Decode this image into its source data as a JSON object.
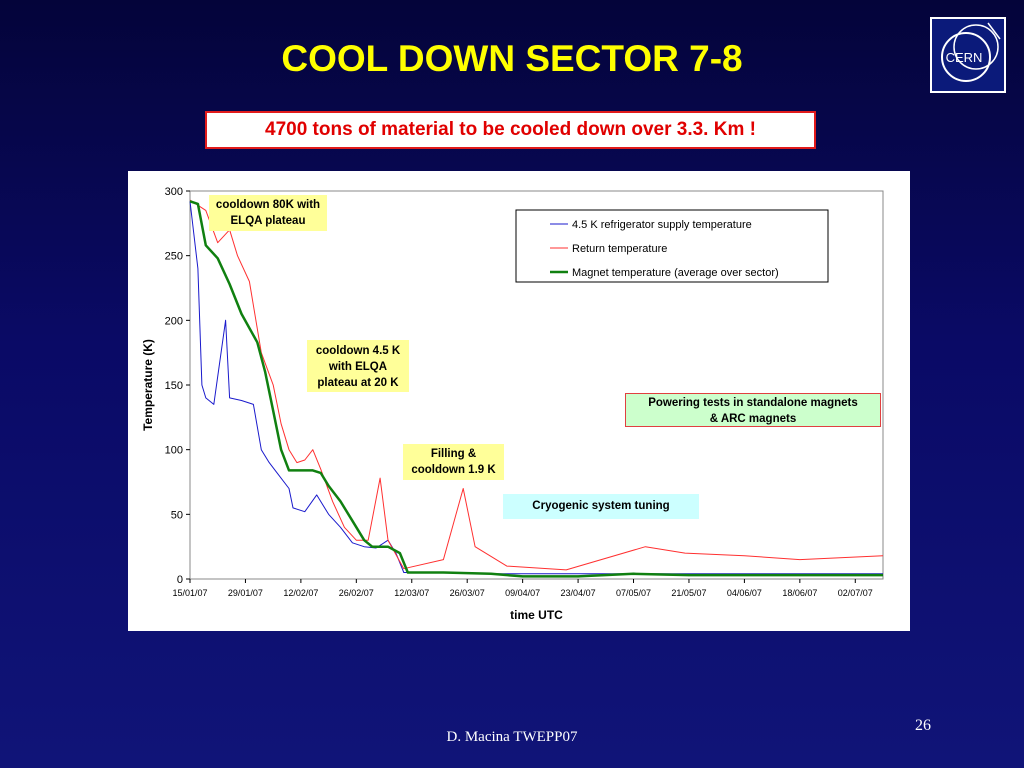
{
  "slide": {
    "title": "COOL DOWN SECTOR 7-8",
    "subtitle": "4700 tons of material to be cooled down over 3.3. Km !",
    "footer": "D. Macina TWEPP07",
    "page_number": "26",
    "logo_text": "CERN"
  },
  "annotations": {
    "cooldown_80k": [
      "cooldown 80K with",
      "ELQA plateau"
    ],
    "cooldown_45k": [
      "cooldown 4.5 K",
      "with ELQA",
      "plateau at 20 K"
    ],
    "filling": [
      "Filling &",
      "cooldown 1.9 K"
    ],
    "powering": [
      "Powering tests in standalone magnets",
      "& ARC magnets"
    ],
    "cryo_tuning": [
      "Cryogenic system tuning"
    ]
  },
  "colors": {
    "title": "#ffff00",
    "supply_series": "#1a1acc",
    "return_series": "#ff3030",
    "magnet_series": "#108010"
  },
  "chart_data": {
    "type": "line",
    "xlabel": "time UTC",
    "ylabel": "Temperature (K)",
    "ylim": [
      0,
      300
    ],
    "yticks": [
      0,
      50,
      100,
      150,
      200,
      250,
      300
    ],
    "xticks": [
      "15/01/07",
      "29/01/07",
      "12/02/07",
      "26/02/07",
      "12/03/07",
      "26/03/07",
      "09/04/07",
      "23/04/07",
      "07/05/07",
      "21/05/07",
      "04/06/07",
      "18/06/07",
      "02/07/07"
    ],
    "xlim": [
      "15/01/07",
      "09/07/07"
    ],
    "legend_position": "top-right",
    "series": [
      {
        "name": "4.5 K refrigerator supply temperature",
        "color": "#1a1acc",
        "points": [
          [
            "15/01/07",
            292
          ],
          [
            "17/01/07",
            240
          ],
          [
            "18/01/07",
            150
          ],
          [
            "19/01/07",
            140
          ],
          [
            "21/01/07",
            135
          ],
          [
            "24/01/07",
            200
          ],
          [
            "25/01/07",
            140
          ],
          [
            "28/01/07",
            138
          ],
          [
            "31/01/07",
            135
          ],
          [
            "02/02/07",
            100
          ],
          [
            "04/02/07",
            90
          ],
          [
            "06/02/07",
            82
          ],
          [
            "09/02/07",
            70
          ],
          [
            "10/02/07",
            55
          ],
          [
            "13/02/07",
            52
          ],
          [
            "16/02/07",
            65
          ],
          [
            "19/02/07",
            50
          ],
          [
            "22/02/07",
            40
          ],
          [
            "25/02/07",
            28
          ],
          [
            "28/02/07",
            25
          ],
          [
            "03/03/07",
            24
          ],
          [
            "06/03/07",
            30
          ],
          [
            "08/03/07",
            20
          ],
          [
            "10/03/07",
            5
          ],
          [
            "15/03/07",
            5
          ],
          [
            "01/04/07",
            4
          ],
          [
            "15/05/07",
            4
          ],
          [
            "04/06/07",
            4
          ],
          [
            "09/07/07",
            4
          ]
        ]
      },
      {
        "name": "Return temperature",
        "color": "#ff3030",
        "points": [
          [
            "15/01/07",
            293
          ],
          [
            "19/01/07",
            285
          ],
          [
            "22/01/07",
            260
          ],
          [
            "25/01/07",
            270
          ],
          [
            "27/01/07",
            250
          ],
          [
            "30/01/07",
            230
          ],
          [
            "02/02/07",
            175
          ],
          [
            "05/02/07",
            150
          ],
          [
            "07/02/07",
            120
          ],
          [
            "09/02/07",
            100
          ],
          [
            "11/02/07",
            90
          ],
          [
            "13/02/07",
            92
          ],
          [
            "15/02/07",
            100
          ],
          [
            "17/02/07",
            85
          ],
          [
            "20/02/07",
            60
          ],
          [
            "23/02/07",
            40
          ],
          [
            "26/02/07",
            30
          ],
          [
            "01/03/07",
            30
          ],
          [
            "04/03/07",
            78
          ],
          [
            "06/03/07",
            30
          ],
          [
            "10/03/07",
            8
          ],
          [
            "20/03/07",
            15
          ],
          [
            "25/03/07",
            70
          ],
          [
            "28/03/07",
            25
          ],
          [
            "05/04/07",
            10
          ],
          [
            "20/04/07",
            7
          ],
          [
            "10/05/07",
            25
          ],
          [
            "20/05/07",
            20
          ],
          [
            "04/06/07",
            18
          ],
          [
            "18/06/07",
            15
          ],
          [
            "09/07/07",
            18
          ]
        ]
      },
      {
        "name": "Magnet temperature (average over sector)",
        "color": "#108010",
        "points": [
          [
            "15/01/07",
            292
          ],
          [
            "17/01/07",
            290
          ],
          [
            "19/01/07",
            258
          ],
          [
            "22/01/07",
            248
          ],
          [
            "25/01/07",
            228
          ],
          [
            "28/01/07",
            205
          ],
          [
            "01/02/07",
            183
          ],
          [
            "03/02/07",
            160
          ],
          [
            "05/02/07",
            130
          ],
          [
            "07/02/07",
            100
          ],
          [
            "09/02/07",
            84
          ],
          [
            "12/02/07",
            84
          ],
          [
            "15/02/07",
            84
          ],
          [
            "17/02/07",
            82
          ],
          [
            "19/02/07",
            72
          ],
          [
            "22/02/07",
            60
          ],
          [
            "25/02/07",
            45
          ],
          [
            "28/02/07",
            30
          ],
          [
            "02/03/07",
            25
          ],
          [
            "06/03/07",
            25
          ],
          [
            "09/03/07",
            20
          ],
          [
            "11/03/07",
            5
          ],
          [
            "20/03/07",
            5
          ],
          [
            "01/04/07",
            4
          ],
          [
            "09/04/07",
            2
          ],
          [
            "23/04/07",
            2
          ],
          [
            "07/05/07",
            4
          ],
          [
            "21/05/07",
            3
          ],
          [
            "04/06/07",
            3
          ],
          [
            "18/06/07",
            3
          ],
          [
            "02/07/07",
            3
          ],
          [
            "09/07/07",
            3
          ]
        ]
      }
    ]
  }
}
